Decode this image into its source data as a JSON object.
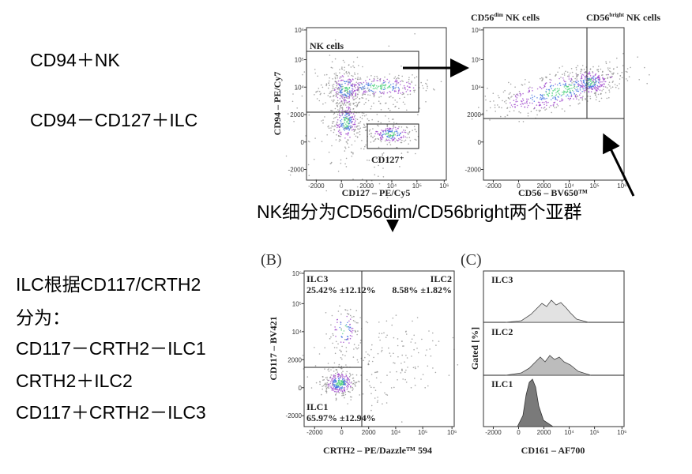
{
  "left_notes": {
    "nk": "CD94＋NK",
    "ilc": "CD94－CD127＋ILC"
  },
  "caption": "NK细分为CD56dim/CD56bright两个亚群",
  "ilc_text": [
    "ILC根据CD117/CRTH2",
    "分为：",
    "CD117－CRTH2－ILC1",
    "CRTH2＋ILC2",
    "CD117＋CRTH2－ILC3"
  ],
  "panels": [
    {
      "x_label": "CD127 – PE/Cy5",
      "y_label": "CD94 – PE/Cy7",
      "gates": [
        "NK cells",
        "CD127⁺"
      ],
      "xticks": [
        "-2000",
        "0",
        "2000",
        "10⁴",
        "10⁵",
        "10⁶"
      ],
      "yticks": [
        "-2000",
        "0",
        "2000",
        "10⁴",
        "10⁵",
        "10⁶"
      ]
    },
    {
      "x_label": "CD56 – BV650™",
      "gates": [
        [
          "CD56",
          "dim",
          " NK cells"
        ],
        [
          "CD56",
          "bright",
          " NK cells"
        ]
      ],
      "xticks": [
        "-2000",
        "0",
        "2000",
        "10⁴",
        "10⁵",
        "10⁶"
      ],
      "yticks": [
        "-2000",
        "0",
        "2000",
        "10⁴",
        "10⁵",
        "10⁶"
      ]
    },
    {
      "panel_label": "(B)",
      "x_label": "CRTH2 – PE/Dazzle™ 594",
      "y_label": "CD117 – BV421",
      "gates": [
        [
          "ILC3",
          "25.42% ±12.12%"
        ],
        [
          "ILC2",
          "8.58% ±1.82%"
        ],
        [
          "ILC1",
          "65.97% ±12.94%"
        ]
      ],
      "xticks": [
        "-2000",
        "0",
        "2000",
        "10⁴",
        "10⁵",
        "10⁶"
      ],
      "yticks": [
        "-2000",
        "0",
        "2000",
        "10⁴",
        "10⁵",
        "10⁶"
      ]
    },
    {
      "panel_label": "(C)",
      "x_label": "CD161 – AF700",
      "y_label": "Gated [%]",
      "rows": [
        "ILC3",
        "ILC2",
        "ILC1"
      ],
      "xticks": [
        "-2000",
        "0",
        "2000",
        "10⁴",
        "10⁵",
        "10⁶"
      ]
    }
  ]
}
